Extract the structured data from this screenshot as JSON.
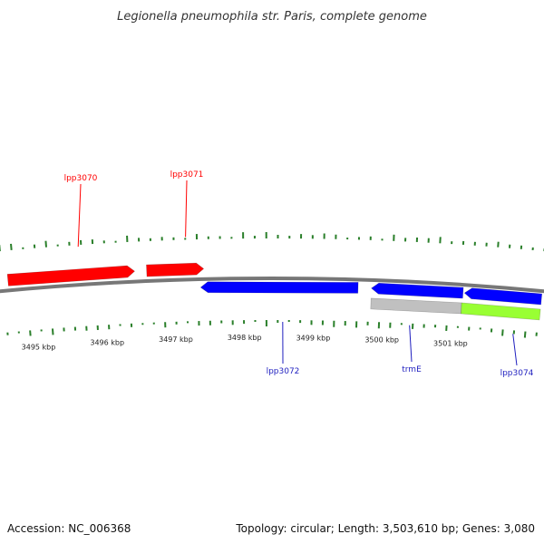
{
  "title": "Legionella pneumophila str. Paris, complete genome",
  "accession": "Accession: NC_006368",
  "summary": "Topology: circular; Length: 3,503,610 bp; Genes: 3,080",
  "colors": {
    "forward_gene": "#ff0000",
    "reverse_gene": "#0000ff",
    "rna": "#c0c0c0",
    "other_feature": "#99ff33",
    "backbone": "#777777",
    "gc_ticks": "#2a7f2a",
    "forward_label": "#ff0000",
    "reverse_label": "#1f1fbf"
  },
  "scale_labels": [
    {
      "label": "3495 kbp",
      "kbp": 3495
    },
    {
      "label": "3496 kbp",
      "kbp": 3496
    },
    {
      "label": "3497 kbp",
      "kbp": 3497
    },
    {
      "label": "3498 kbp",
      "kbp": 3498
    },
    {
      "label": "3499 kbp",
      "kbp": 3499
    },
    {
      "label": "3500 kbp",
      "kbp": 3500
    },
    {
      "label": "3501 kbp",
      "kbp": 3501
    }
  ],
  "features": [
    {
      "name": "lpp3070",
      "strand": "+",
      "start_kbp": 3494.65,
      "end_kbp": 3496.45,
      "type": "gene",
      "labeled": true
    },
    {
      "name": "lpp3071",
      "strand": "+",
      "start_kbp": 3496.62,
      "end_kbp": 3497.43,
      "type": "gene",
      "labeled": true
    },
    {
      "name": "lpp3072",
      "strand": "-",
      "start_kbp": 3497.38,
      "end_kbp": 3499.63,
      "type": "gene",
      "labeled": true
    },
    {
      "name": "",
      "strand": "-",
      "start_kbp": 3499.82,
      "end_kbp": 3501.13,
      "type": "gene",
      "labeled": false
    },
    {
      "name": "",
      "strand": "-",
      "start_kbp": 3501.15,
      "end_kbp": 3502.25,
      "type": "gene",
      "labeled": false
    },
    {
      "name": "trmE",
      "strand": "-",
      "start_kbp": 3499.82,
      "end_kbp": 3501.12,
      "type": "rna",
      "labeled": true
    },
    {
      "name": "lpp3074",
      "strand": "-",
      "start_kbp": 3501.12,
      "end_kbp": 3502.25,
      "type": "other",
      "labeled": true
    }
  ]
}
